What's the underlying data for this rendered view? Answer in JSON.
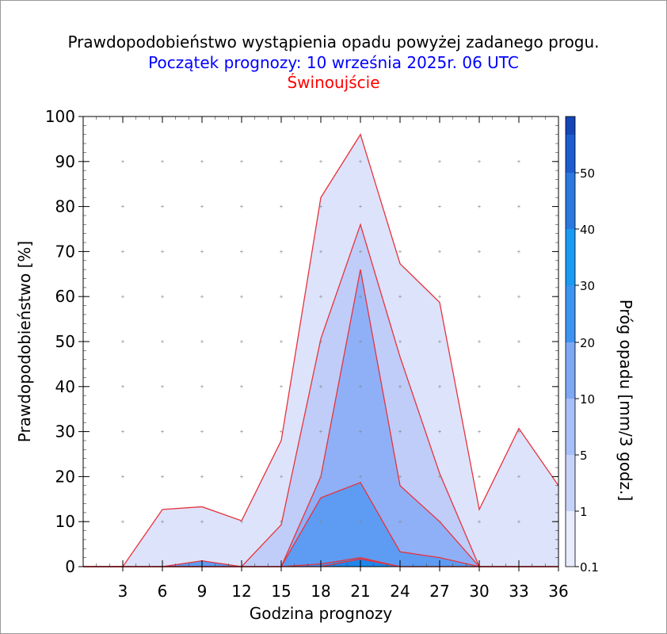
{
  "titles": {
    "line1": "Prawdopodobieństwo wystąpienia opadu powyżej zadanego progu.",
    "line2": "Początek prognozy: 10 września 2025r. 06 UTC",
    "line3": "Świnoujście"
  },
  "colors": {
    "title": "#000000",
    "subtitle": "#0000ff",
    "station": "#ff0000",
    "outline": "#e8323c"
  },
  "chart_data": {
    "type": "area",
    "xlabel": "Godzina prognozy",
    "ylabel": "Prawdopodobieństwo [%]",
    "colorbar_label": "Próg opadu [mm/3 godz.]",
    "xlim": [
      0,
      36
    ],
    "ylim": [
      0,
      100
    ],
    "xticks": [
      3,
      6,
      9,
      12,
      15,
      18,
      21,
      24,
      27,
      30,
      33,
      36
    ],
    "yticks": [
      0,
      10,
      20,
      30,
      40,
      50,
      60,
      70,
      80,
      90,
      100
    ],
    "x": [
      0,
      3,
      6,
      9,
      12,
      15,
      18,
      21,
      24,
      27,
      30,
      33,
      36
    ],
    "series": [
      {
        "threshold": 0.1,
        "color": "#dde3fb",
        "values": [
          0,
          0,
          12.7,
          13.3,
          10.2,
          28,
          82,
          96,
          67.3,
          58.7,
          12.7,
          30.7,
          18
        ]
      },
      {
        "threshold": 1,
        "color": "#bfcdf8",
        "values": [
          0,
          0,
          0,
          0,
          0,
          9.3,
          50.6,
          76,
          46.6,
          20.7,
          0,
          0,
          0
        ]
      },
      {
        "threshold": 5,
        "color": "#8fb0f6",
        "values": [
          0,
          0,
          0,
          0,
          0,
          0,
          20,
          66,
          18,
          10,
          0,
          0,
          0
        ]
      },
      {
        "threshold": 10,
        "color": "#5d9cf2",
        "values": [
          0,
          0,
          0,
          1.3,
          0,
          0,
          15.3,
          18.7,
          3.3,
          2,
          0,
          0,
          0
        ]
      },
      {
        "threshold": 20,
        "color": "#3a8fee",
        "values": [
          0,
          0,
          0,
          0,
          0,
          0,
          0.6,
          2,
          0,
          0,
          0,
          0,
          0
        ]
      },
      {
        "threshold": 30,
        "color": "#1f86eb",
        "values": [
          0,
          0,
          0,
          0,
          0,
          0,
          0,
          1.7,
          0,
          0,
          0,
          0,
          0
        ]
      }
    ],
    "colorbar": {
      "labels": [
        "0.1",
        "1",
        "5",
        "10",
        "20",
        "30",
        "40",
        "50"
      ],
      "bands": [
        {
          "from": "0.1",
          "color": "#e8ecfc"
        },
        {
          "from": "1",
          "color": "#c6d3f9"
        },
        {
          "from": "5",
          "color": "#a8c0f7"
        },
        {
          "from": "10",
          "color": "#7ea8f4"
        },
        {
          "from": "20",
          "color": "#3d93f0"
        },
        {
          "from": "30",
          "color": "#1a9af2"
        },
        {
          "from": "40",
          "color": "#2a78e0"
        },
        {
          "from": "50",
          "color": "#1d5ccf"
        },
        {
          "from": "top",
          "color": "#1546b8"
        }
      ]
    }
  }
}
